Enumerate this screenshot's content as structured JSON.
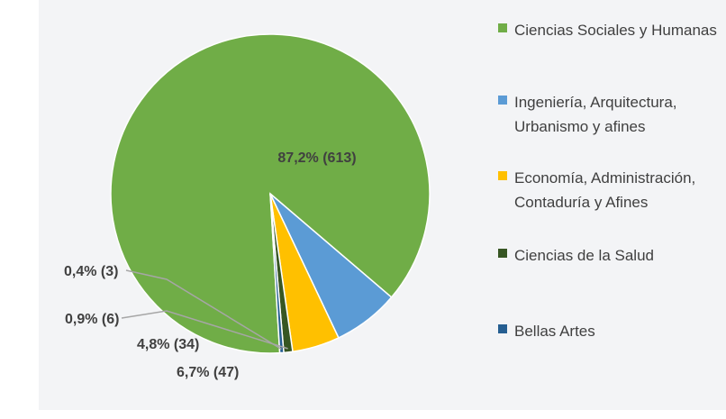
{
  "chart_data": {
    "type": "pie",
    "title": "",
    "slices": [
      {
        "label": "Ciencias Sociales y Humanas",
        "percent": 87.2,
        "count": 613,
        "display": "87,2% (613)",
        "color": "#70ad47"
      },
      {
        "label": "Ingeniería, Arquitectura, Urbanismo y afines",
        "percent": 6.7,
        "count": 47,
        "display": "6,7% (47)",
        "color": "#5b9bd5"
      },
      {
        "label": "Economía, Administración, Contaduría y Afines",
        "percent": 4.8,
        "count": 34,
        "display": "4,8% (34)",
        "color": "#ffc000"
      },
      {
        "label": "Ciencias de la Salud",
        "percent": 0.9,
        "count": 6,
        "display": "0,9% (6)",
        "color": "#375623"
      },
      {
        "label": "Bellas Artes",
        "percent": 0.4,
        "count": 3,
        "display": "0,4% (3)",
        "color": "#255e91"
      }
    ],
    "legend_position": "right"
  },
  "legend": {
    "items": [
      {
        "line1": "Ciencias Sociales y Humanas",
        "line2": "",
        "color": "#70ad47"
      },
      {
        "line1": "Ingeniería, Arquitectura,",
        "line2": "Urbanismo y afines",
        "color": "#5b9bd5"
      },
      {
        "line1": "Economía, Administración,",
        "line2": "Contaduría y Afines",
        "color": "#ffc000"
      },
      {
        "line1": "Ciencias de la Salud",
        "line2": "",
        "color": "#375623"
      },
      {
        "line1": "Bellas Artes",
        "line2": "",
        "color": "#255e91"
      }
    ]
  }
}
